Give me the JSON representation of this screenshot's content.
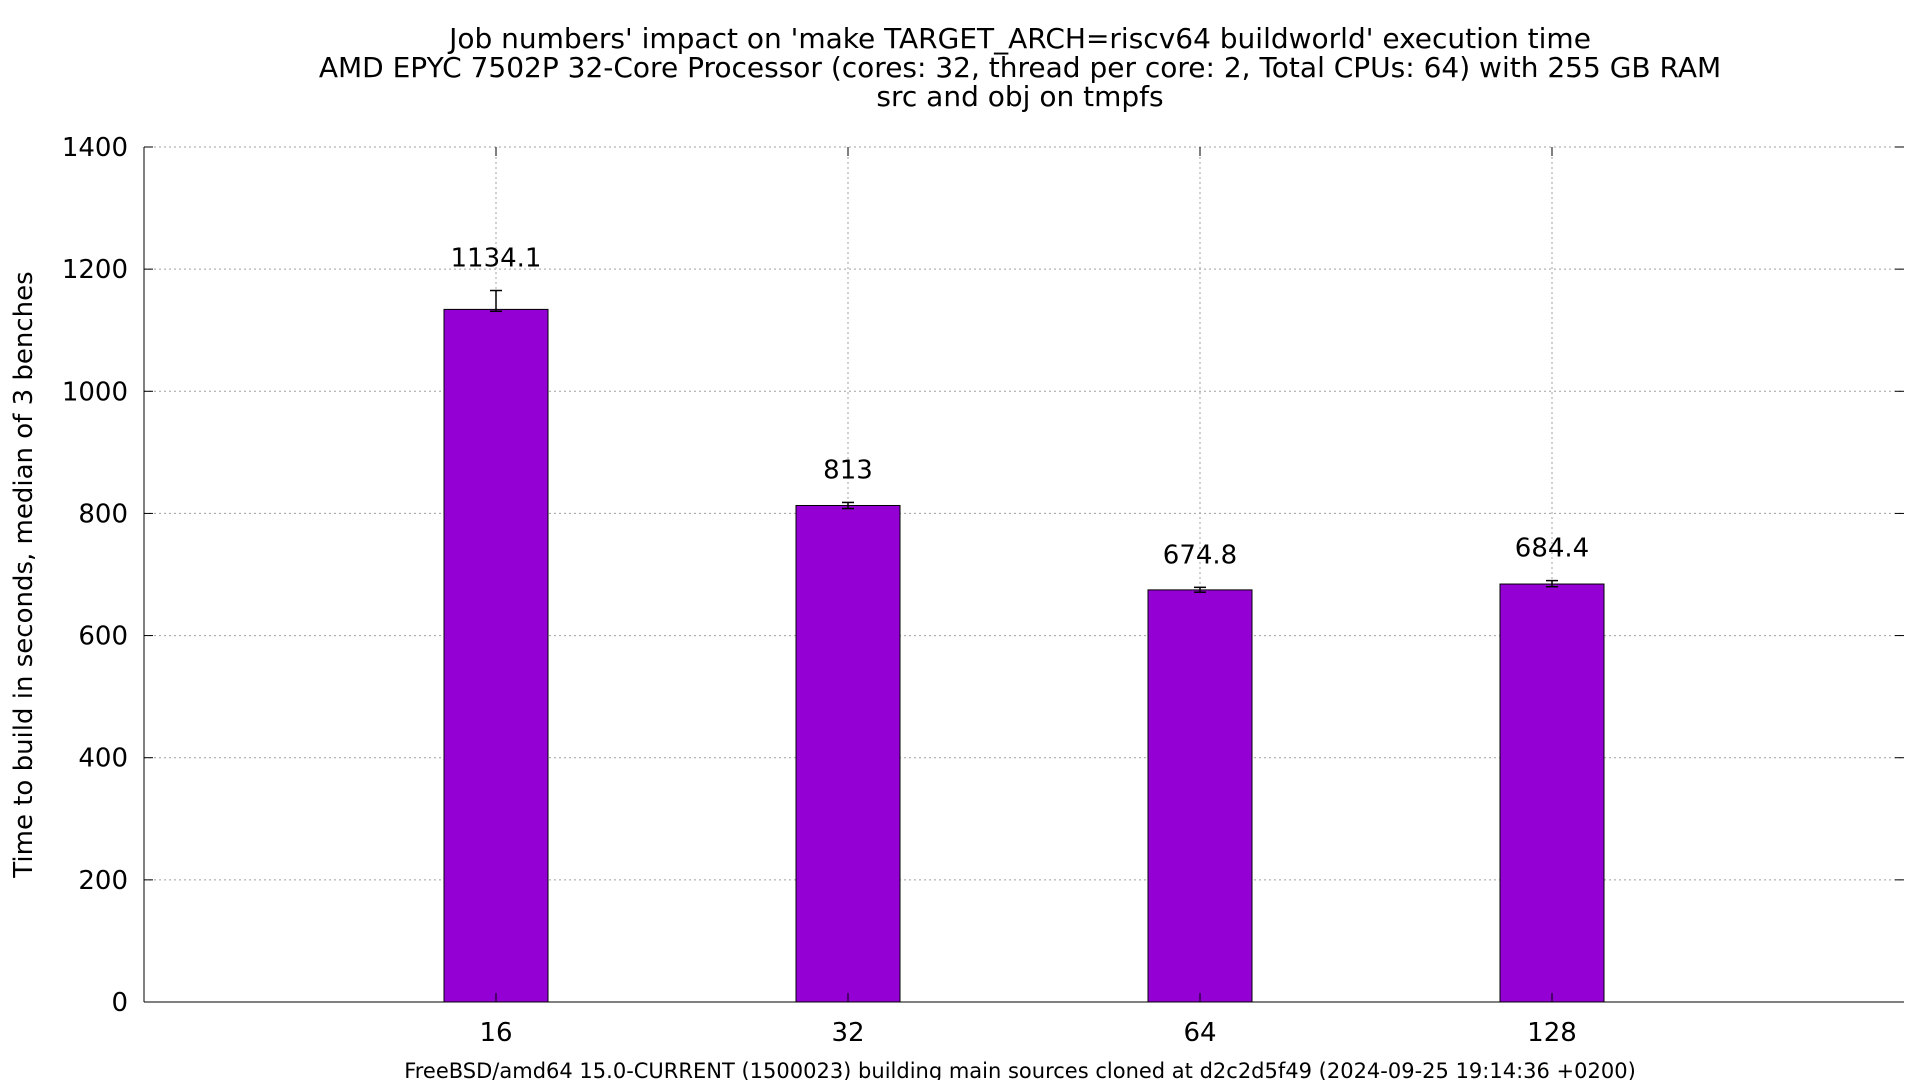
{
  "chart_data": {
    "type": "bar",
    "title_lines": [
      "Job numbers' impact on 'make TARGET_ARCH=riscv64 buildworld' execution time",
      "AMD EPYC 7502P 32-Core Processor (cores: 32, thread per core: 2, Total CPUs: 64) with 255 GB RAM",
      "src and obj on tmpfs"
    ],
    "xlabel": "FreeBSD/amd64 15.0-CURRENT (1500023) building main sources cloned at d2c2d5f49 (2024-09-25 19:14:36 +0200)",
    "ylabel": "Time to build in seconds, median of 3 benches",
    "categories": [
      "16",
      "32",
      "64",
      "128"
    ],
    "values": [
      1134.1,
      813,
      674.8,
      684.4
    ],
    "data_labels": [
      "1134.1",
      "813",
      "674.8",
      "684.4"
    ],
    "error_bars": [
      {
        "low": 1131,
        "high": 1165
      },
      {
        "low": 808,
        "high": 818
      },
      {
        "low": 671,
        "high": 679
      },
      {
        "low": 680,
        "high": 690
      }
    ],
    "ylim": [
      0,
      1400
    ],
    "yticks": [
      0,
      200,
      400,
      600,
      800,
      1000,
      1200,
      1400
    ],
    "grid": true,
    "bar_color": "#9400d3",
    "legend": "none"
  }
}
